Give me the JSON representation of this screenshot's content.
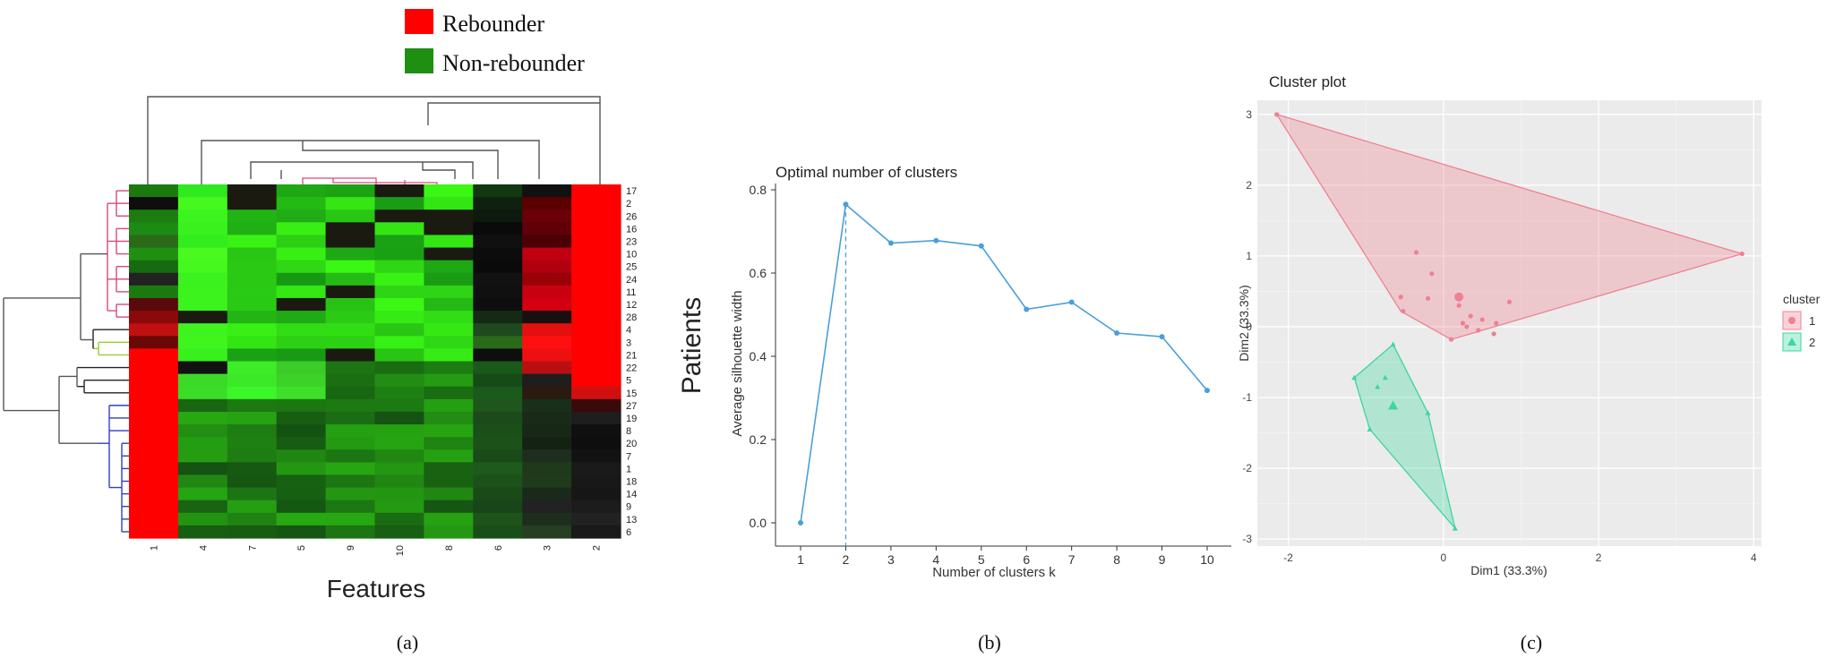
{
  "panel_labels": [
    "(a)",
    "(b)",
    "(c)"
  ],
  "colors": {
    "rebounder": "#ff0000",
    "non_rebounder": "#1f8f12",
    "dendro_pink": "#d94a7a",
    "dendro_green": "#9acd32",
    "dendro_blue": "#2f3fc0",
    "line_blue": "#4a9fd8",
    "cluster1": "#f08090",
    "cluster2": "#3cd6a0",
    "panel_bg": "#ebebeb"
  },
  "chart_data": [
    {
      "type": "heatmap",
      "legend": [
        {
          "label": "Rebounder",
          "color": "#ff0000"
        },
        {
          "label": "Non-rebounder",
          "color": "#1f8f12"
        }
      ],
      "xlabel": "Features",
      "ylabel": "Patients",
      "columns": [
        "1",
        "4",
        "7",
        "5",
        "9",
        "10",
        "8",
        "6",
        "3",
        "2"
      ],
      "rows": [
        "17",
        "2",
        "26",
        "16",
        "23",
        "10",
        "25",
        "24",
        "11",
        "12",
        "28",
        "4",
        "3",
        "21",
        "22",
        "5",
        "15",
        "27",
        "19",
        "8",
        "20",
        "7",
        "1",
        "18",
        "14",
        "9",
        "13",
        "6"
      ],
      "row_groups": [
        {
          "rows": [
            "17",
            "2",
            "26",
            "16",
            "23",
            "10",
            "25",
            "24",
            "11",
            "12",
            "28"
          ],
          "color": "pink"
        },
        {
          "rows": [
            "4",
            "3",
            "21"
          ],
          "color": "green"
        },
        {
          "rows": [
            "22",
            "5",
            "15"
          ],
          "color": "black"
        },
        {
          "rows": [
            "27",
            "19",
            "8",
            "20",
            "7",
            "1",
            "18",
            "14",
            "9",
            "13",
            "6"
          ],
          "color": "blue"
        }
      ],
      "note": "Red/green intensity heatmap; first feature column marks rebounder (red) vs non-rebounder (green) for each patient row; column 2 is red for the upper rows."
    },
    {
      "type": "line",
      "title": "Optimal number of clusters",
      "xlabel": "Number of clusters k",
      "ylabel": "Average silhouette width",
      "x": [
        1,
        2,
        3,
        4,
        5,
        6,
        7,
        8,
        9,
        10
      ],
      "y": [
        0.0,
        0.765,
        0.672,
        0.678,
        0.665,
        0.513,
        0.53,
        0.456,
        0.447,
        0.318
      ],
      "optimal_k": 2,
      "xticks": [
        "1",
        "2",
        "3",
        "4",
        "5",
        "6",
        "7",
        "8",
        "9",
        "10"
      ],
      "yticks": [
        "0.0",
        "0.2",
        "0.4",
        "0.6",
        "0.8"
      ],
      "ylim": [
        0,
        0.8
      ],
      "xlim": [
        1,
        10
      ]
    },
    {
      "type": "scatter",
      "title": "Cluster plot",
      "xlabel": "Dim1 (33.3%)",
      "ylabel": "Dim2 (33.3%)",
      "xlim": [
        -2.4,
        4.1
      ],
      "ylim": [
        -3.1,
        3.2
      ],
      "xticks": [
        -2,
        0,
        2,
        4
      ],
      "yticks": [
        -3,
        -2,
        -1,
        0,
        1,
        2,
        3
      ],
      "legend_title": "cluster",
      "series": [
        {
          "name": "1",
          "marker": "circle",
          "hull": [
            [
              -2.15,
              3.0
            ],
            [
              3.85,
              1.03
            ],
            [
              0.1,
              -0.18
            ],
            [
              -0.55,
              0.22
            ]
          ],
          "points": [
            [
              -2.15,
              3.0
            ],
            [
              3.85,
              1.03
            ],
            [
              -0.35,
              1.05
            ],
            [
              -0.55,
              0.42
            ],
            [
              -0.52,
              0.22
            ],
            [
              -0.15,
              0.75
            ],
            [
              0.1,
              -0.18
            ],
            [
              0.25,
              0.05
            ],
            [
              0.3,
              0.0
            ],
            [
              0.45,
              -0.05
            ],
            [
              0.5,
              0.1
            ],
            [
              0.68,
              0.05
            ],
            [
              0.85,
              0.35
            ],
            [
              0.65,
              -0.1
            ],
            [
              0.2,
              0.3
            ],
            [
              -0.2,
              0.4
            ],
            [
              0.35,
              0.15
            ]
          ],
          "centroid": [
            0.2,
            0.42
          ]
        },
        {
          "name": "2",
          "marker": "triangle",
          "hull": [
            [
              -0.65,
              -0.25
            ],
            [
              -1.15,
              -0.72
            ],
            [
              -0.95,
              -1.45
            ],
            [
              0.15,
              -2.85
            ],
            [
              -0.2,
              -1.22
            ]
          ],
          "points": [
            [
              -0.65,
              -0.25
            ],
            [
              -1.15,
              -0.72
            ],
            [
              -0.95,
              -1.45
            ],
            [
              0.15,
              -2.85
            ],
            [
              -0.2,
              -1.22
            ],
            [
              -0.85,
              -0.85
            ],
            [
              -0.75,
              -0.72
            ]
          ],
          "centroid": [
            -0.65,
            -1.12
          ]
        }
      ]
    }
  ]
}
